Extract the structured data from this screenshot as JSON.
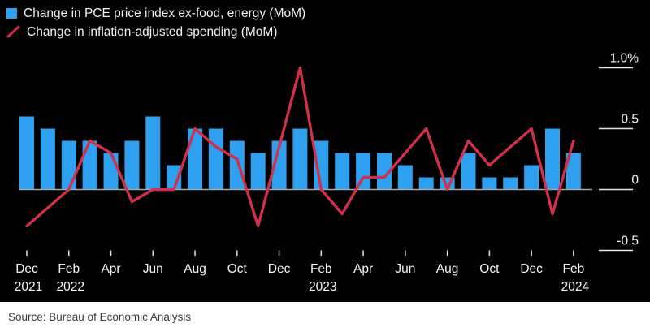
{
  "legend": {
    "items": [
      {
        "label": "Change in PCE price index ex-food, energy (MoM)",
        "marker": "square",
        "color": "#2f9ff0"
      },
      {
        "label": "Change in inflation-adjusted spending (MoM)",
        "marker": "line",
        "color": "#d0304a"
      }
    ]
  },
  "source": {
    "text": "Source: Bureau of Economic Analysis"
  },
  "chart_data": {
    "type": "bar",
    "subtype": "combo-bar-line",
    "background": "#000000",
    "grid": false,
    "legend_position": "top-left",
    "unit": "%",
    "categories": [
      "Dec 2021",
      "Jan 2022",
      "Feb 2022",
      "Mar 2022",
      "Apr 2022",
      "May 2022",
      "Jun 2022",
      "Jul 2022",
      "Aug 2022",
      "Sep 2022",
      "Oct 2022",
      "Nov 2022",
      "Dec 2022",
      "Jan 2023",
      "Feb 2023",
      "Mar 2023",
      "Apr 2023",
      "May 2023",
      "Jun 2023",
      "Jul 2023",
      "Aug 2023",
      "Sep 2023",
      "Oct 2023",
      "Nov 2023",
      "Dec 2023",
      "Jan 2024",
      "Feb 2024"
    ],
    "series": [
      {
        "name": "Change in PCE price index ex-food, energy (MoM)",
        "type": "bar",
        "color": "#2f9ff0",
        "values": [
          0.6,
          0.5,
          0.4,
          0.4,
          0.3,
          0.4,
          0.6,
          0.2,
          0.5,
          0.5,
          0.4,
          0.3,
          0.4,
          0.5,
          0.4,
          0.3,
          0.3,
          0.3,
          0.2,
          0.1,
          0.1,
          0.3,
          0.1,
          0.1,
          0.2,
          0.5,
          0.3
        ]
      },
      {
        "name": "Change in inflation-adjusted spending (MoM)",
        "type": "line",
        "color": "#d0304a",
        "values": [
          -0.3,
          -0.15,
          0.0,
          0.4,
          0.3,
          -0.1,
          0.0,
          0.0,
          0.5,
          0.35,
          0.25,
          -0.3,
          0.35,
          1.0,
          0.0,
          -0.2,
          0.1,
          0.1,
          0.3,
          0.5,
          0.0,
          0.4,
          0.2,
          0.35,
          0.5,
          -0.2,
          0.4
        ]
      }
    ],
    "y_axis": {
      "side": "right",
      "range": [
        -0.65,
        1.15
      ],
      "zero_line_color": "#a6a6a6",
      "tick_color": "#e8e8e8",
      "ticks": [
        {
          "label": "1.0%",
          "value": 1.0
        },
        {
          "label": "0.5",
          "value": 0.5
        },
        {
          "label": "0",
          "value": 0
        },
        {
          "label": "-0.5",
          "value": -0.5
        }
      ]
    },
    "x_axis": {
      "ticks": [
        {
          "index": 0,
          "label": "Dec",
          "year": "2021"
        },
        {
          "index": 2,
          "label": "Feb",
          "year": "2022"
        },
        {
          "index": 4,
          "label": "Apr"
        },
        {
          "index": 6,
          "label": "Jun"
        },
        {
          "index": 8,
          "label": "Aug"
        },
        {
          "index": 10,
          "label": "Oct"
        },
        {
          "index": 12,
          "label": "Dec"
        },
        {
          "index": 14,
          "label": "Feb",
          "year": "2023"
        },
        {
          "index": 16,
          "label": "Apr"
        },
        {
          "index": 18,
          "label": "Jun"
        },
        {
          "index": 20,
          "label": "Aug"
        },
        {
          "index": 22,
          "label": "Oct"
        },
        {
          "index": 24,
          "label": "Dec"
        },
        {
          "index": 26,
          "label": "Feb",
          "year": "2024"
        }
      ]
    }
  }
}
